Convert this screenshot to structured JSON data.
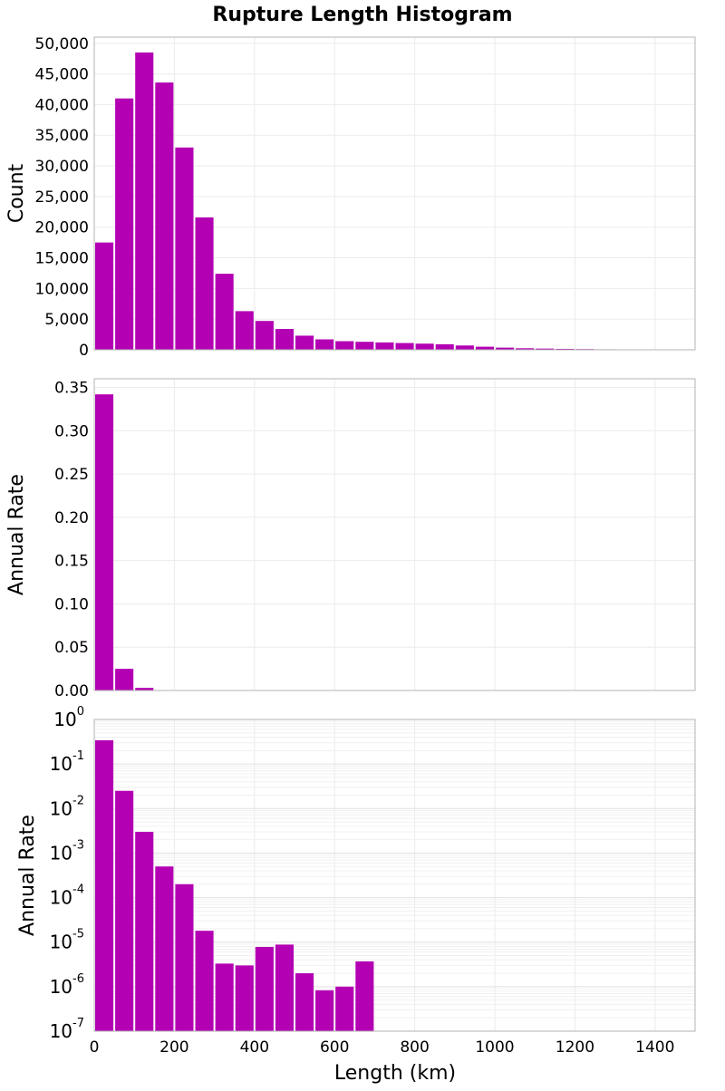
{
  "chart_data": {
    "type": "bar",
    "title": "Rupture Length Histogram",
    "bar_color": "#b300b3",
    "x": {
      "label": "Length (km)",
      "range": [
        0,
        1500
      ],
      "ticks": [
        0,
        200,
        400,
        600,
        800,
        1000,
        1200,
        1400
      ],
      "tick_labels": [
        "0",
        "200",
        "400",
        "600",
        "800",
        "1000",
        "1200",
        "1400"
      ],
      "bin_width": 50,
      "bin_starts": [
        0,
        50,
        100,
        150,
        200,
        250,
        300,
        350,
        400,
        450,
        500,
        550,
        600,
        650,
        700,
        750,
        800,
        850,
        900,
        950,
        1000,
        1050,
        1100,
        1150,
        1200,
        1250,
        1300,
        1350,
        1400,
        1450
      ]
    },
    "panels": [
      {
        "id": "count",
        "ylabel": "Count",
        "scale": "linear",
        "ylim": [
          0,
          51000
        ],
        "yticks": [
          0,
          5000,
          10000,
          15000,
          20000,
          25000,
          30000,
          35000,
          40000,
          45000,
          50000
        ],
        "ytick_labels": [
          "0",
          "5,000",
          "10,000",
          "15,000",
          "20,000",
          "25,000",
          "30,000",
          "35,000",
          "40,000",
          "45,000",
          "50,000"
        ],
        "values": [
          17500,
          41000,
          48500,
          43600,
          33000,
          21600,
          12400,
          6300,
          4700,
          3400,
          2300,
          1700,
          1400,
          1300,
          1200,
          1100,
          1000,
          900,
          700,
          500,
          350,
          250,
          200,
          150,
          120,
          80,
          60,
          40,
          20,
          10
        ]
      },
      {
        "id": "rate-linear",
        "ylabel": "Annual Rate",
        "scale": "linear",
        "ylim": [
          0,
          0.36
        ],
        "yticks": [
          0,
          0.05,
          0.1,
          0.15,
          0.2,
          0.25,
          0.3,
          0.35
        ],
        "ytick_labels": [
          "0.00",
          "0.05",
          "0.10",
          "0.15",
          "0.20",
          "0.25",
          "0.30",
          "0.35"
        ],
        "values": [
          0.342,
          0.025,
          0.003,
          0.0005,
          0.0002,
          1.8e-05,
          3.3e-06,
          3e-06,
          7.8e-06,
          8.8e-06,
          2e-06,
          8.3e-07,
          1e-06,
          3.7e-06,
          0,
          0,
          0,
          0,
          0,
          0,
          0,
          0,
          0,
          0,
          0,
          0,
          0,
          0,
          0,
          0
        ]
      },
      {
        "id": "rate-log",
        "ylabel": "Annual Rate",
        "scale": "log",
        "ylim": [
          1e-07,
          1
        ],
        "ytick_exponents": [
          0,
          -1,
          -2,
          -3,
          -4,
          -5,
          -6,
          -7
        ],
        "ytick_base": "10",
        "values": [
          0.342,
          0.025,
          0.003,
          0.0005,
          0.0002,
          1.8e-05,
          3.3e-06,
          3e-06,
          7.8e-06,
          8.8e-06,
          2e-06,
          8.3e-07,
          1e-06,
          3.7e-06,
          0,
          0,
          0,
          0,
          0,
          0,
          0,
          0,
          0,
          0,
          0,
          0,
          0,
          0,
          0,
          0
        ]
      }
    ]
  }
}
